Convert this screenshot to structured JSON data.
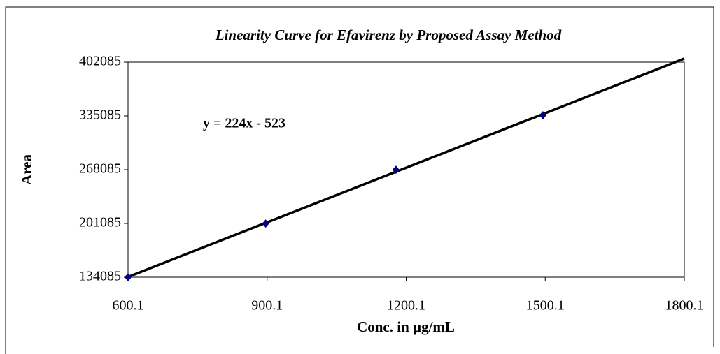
{
  "chart_data": {
    "type": "scatter",
    "title": "Linearity Curve for Efavirenz by Proposed  Assay Method",
    "annotation": "y = 224x - 523",
    "x_label": "Conc. in µg/mL",
    "y_label": "Area",
    "series": [
      {
        "color": "#000080",
        "x": [
          600.1,
          897,
          1178,
          1495
        ],
        "values": [
          134085,
          201000,
          268000,
          336000
        ]
      }
    ],
    "trendline": "linear",
    "xlim": [
      600.1,
      1800.1
    ],
    "xticks": [
      600.1,
      900.1,
      1200.1,
      1500.1,
      1800.1
    ],
    "ylim": [
      134085,
      402085
    ],
    "yticks": [
      134085,
      201085,
      268085,
      335085,
      402085
    ],
    "grid": false
  }
}
